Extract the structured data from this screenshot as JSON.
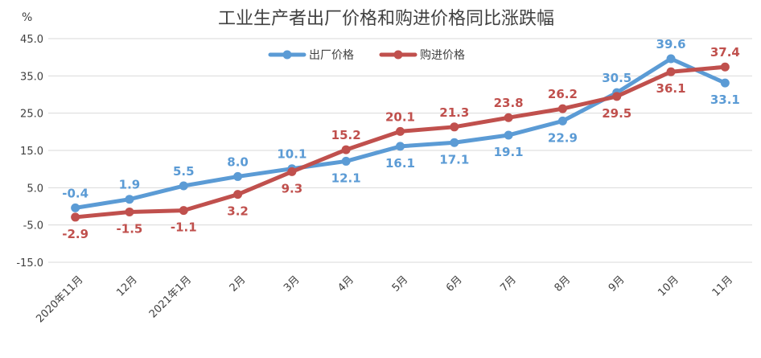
{
  "colors": {
    "factory": "#5b9bd5",
    "purchase": "#c0504d",
    "grid": "#d9d9d9",
    "text": "#404040"
  },
  "chart_data": {
    "type": "line",
    "title": "工业生产者出厂价格和购进价格同比涨跌幅",
    "ylabel": "%",
    "ylim": [
      -15,
      45
    ],
    "yticks": [
      "-15.0",
      "-5.0",
      "5.0",
      "15.0",
      "25.0",
      "35.0",
      "45.0"
    ],
    "ytick_values": [
      -15,
      -5,
      5,
      15,
      25,
      35,
      45
    ],
    "grid": true,
    "legend_position": "top-center",
    "categories": [
      "2020年11月",
      "12月",
      "2021年1月",
      "2月",
      "3月",
      "4月",
      "5月",
      "6月",
      "7月",
      "8月",
      "9月",
      "10月",
      "11月"
    ],
    "series": [
      {
        "name": "出厂价格",
        "color": "#5b9bd5",
        "values": [
          -0.4,
          1.9,
          5.5,
          8.0,
          10.1,
          12.1,
          16.1,
          17.1,
          19.1,
          22.9,
          30.5,
          39.6,
          33.1
        ],
        "labels": [
          "-0.4",
          "1.9",
          "5.5",
          "8.0",
          "10.1",
          "12.1",
          "16.1",
          "17.1",
          "19.1",
          "22.9",
          "30.5",
          "39.6",
          "33.1"
        ],
        "label_side": [
          "above",
          "above",
          "above",
          "above",
          "above",
          "below",
          "below",
          "below",
          "below",
          "below",
          "above",
          "above",
          "below"
        ]
      },
      {
        "name": "购进价格",
        "color": "#c0504d",
        "values": [
          -2.9,
          -1.5,
          -1.1,
          3.2,
          9.3,
          15.2,
          20.1,
          21.3,
          23.8,
          26.2,
          29.5,
          36.1,
          37.4
        ],
        "labels": [
          "-2.9",
          "-1.5",
          "-1.1",
          "3.2",
          "9.3",
          "15.2",
          "20.1",
          "21.3",
          "23.8",
          "26.2",
          "29.5",
          "36.1",
          "37.4"
        ],
        "label_side": [
          "below",
          "below",
          "below",
          "below",
          "below",
          "above",
          "above",
          "above",
          "above",
          "above",
          "below",
          "below",
          "above"
        ]
      }
    ]
  }
}
